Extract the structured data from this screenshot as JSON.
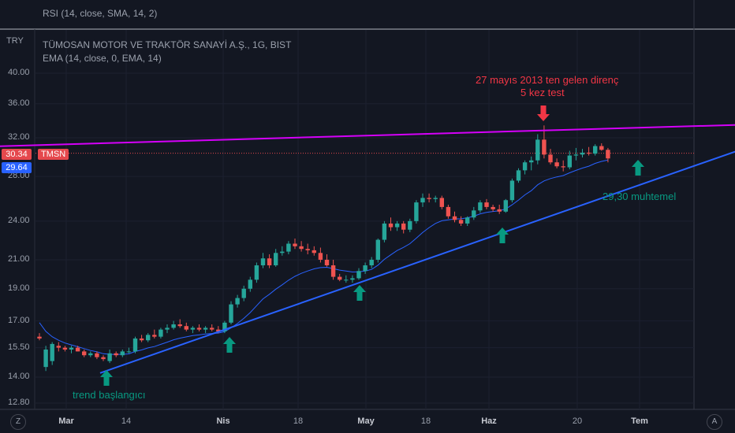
{
  "indicator_rsi": "RSI (14, close, SMA, 14, 2)",
  "currency": "TRY",
  "symbol_title": "TÜMOSAN MOTOR VE TRAKTÖR SANAYİ A.Ş., 1G, BIST",
  "indicator_ema": "EMA (14, close, 0, EMA, 14)",
  "last_price_label": "30.34",
  "ema_value_label": "29.64",
  "ticker_tag": "TMSN",
  "scale_left_button": "Z",
  "scale_right_button": "A",
  "colors": {
    "up": "#26a69a",
    "down": "#ef5350",
    "ema": "#2962ff",
    "resistance": "#d500f9",
    "support": "#2962ff",
    "annot_red": "#f23645",
    "annot_green": "#089981"
  },
  "chart_data": {
    "type": "candlestick",
    "ylim": [
      12.8,
      40
    ],
    "yscale": "log",
    "yticks": [
      "40.00",
      "36.00",
      "32.00",
      "28.00",
      "24.00",
      "21.00",
      "19.00",
      "17.00",
      "15.50",
      "14.00",
      "12.80"
    ],
    "xticks": [
      {
        "label": "Mar",
        "bold": true
      },
      {
        "label": "14",
        "bold": false
      },
      {
        "label": "Nis",
        "bold": true
      },
      {
        "label": "18",
        "bold": false
      },
      {
        "label": "May",
        "bold": true
      },
      {
        "label": "18",
        "bold": false
      },
      {
        "label": "Haz",
        "bold": true
      },
      {
        "label": "20",
        "bold": false
      },
      {
        "label": "Tem",
        "bold": true
      }
    ],
    "candles": [
      [
        16.1,
        16.3,
        15.9,
        16.0
      ],
      [
        14.5,
        15.6,
        14.3,
        15.4
      ],
      [
        14.8,
        15.8,
        14.6,
        15.7
      ],
      [
        15.6,
        15.8,
        15.3,
        15.5
      ],
      [
        15.5,
        15.6,
        15.3,
        15.4
      ],
      [
        15.4,
        15.6,
        15.2,
        15.5
      ],
      [
        15.5,
        15.6,
        15.3,
        15.3
      ],
      [
        15.3,
        15.4,
        15.0,
        15.1
      ],
      [
        15.1,
        15.3,
        15.0,
        15.2
      ],
      [
        15.2,
        15.3,
        14.9,
        15.0
      ],
      [
        15.0,
        15.1,
        14.8,
        14.9
      ],
      [
        14.8,
        15.4,
        14.7,
        15.2
      ],
      [
        15.2,
        15.3,
        15.0,
        15.1
      ],
      [
        15.1,
        15.4,
        15.0,
        15.3
      ],
      [
        15.3,
        15.5,
        15.2,
        15.3
      ],
      [
        15.3,
        16.1,
        15.2,
        16.0
      ],
      [
        16.0,
        16.2,
        15.8,
        15.9
      ],
      [
        15.9,
        16.3,
        15.8,
        16.2
      ],
      [
        16.2,
        16.5,
        16.0,
        16.1
      ],
      [
        16.1,
        16.6,
        16.0,
        16.5
      ],
      [
        16.5,
        16.8,
        16.3,
        16.6
      ],
      [
        16.6,
        17.0,
        16.5,
        16.8
      ],
      [
        16.8,
        17.1,
        16.6,
        16.7
      ],
      [
        16.7,
        16.9,
        16.4,
        16.5
      ],
      [
        16.5,
        16.7,
        16.3,
        16.6
      ],
      [
        16.6,
        16.8,
        16.4,
        16.5
      ],
      [
        16.5,
        16.7,
        16.3,
        16.6
      ],
      [
        16.6,
        16.8,
        16.4,
        16.5
      ],
      [
        16.5,
        16.7,
        16.3,
        16.4
      ],
      [
        16.4,
        17.0,
        16.3,
        16.9
      ],
      [
        16.9,
        18.2,
        16.8,
        18.0
      ],
      [
        18.0,
        18.6,
        17.8,
        18.4
      ],
      [
        18.4,
        19.2,
        18.2,
        19.0
      ],
      [
        19.0,
        19.8,
        18.8,
        19.6
      ],
      [
        19.6,
        20.8,
        19.4,
        20.6
      ],
      [
        20.6,
        21.5,
        20.4,
        21.1
      ],
      [
        21.1,
        21.4,
        20.4,
        20.6
      ],
      [
        20.6,
        21.8,
        20.5,
        21.5
      ],
      [
        21.5,
        22.0,
        21.3,
        21.6
      ],
      [
        21.6,
        22.4,
        21.4,
        22.2
      ],
      [
        22.2,
        22.6,
        21.8,
        22.0
      ],
      [
        22.0,
        22.4,
        21.6,
        21.8
      ],
      [
        21.8,
        22.2,
        21.4,
        21.7
      ],
      [
        21.7,
        22.0,
        21.3,
        21.5
      ],
      [
        21.5,
        21.9,
        20.8,
        21.0
      ],
      [
        21.0,
        21.4,
        20.5,
        20.6
      ],
      [
        20.6,
        21.0,
        19.6,
        19.8
      ],
      [
        19.8,
        20.0,
        19.5,
        19.6
      ],
      [
        19.6,
        19.9,
        19.4,
        19.6
      ],
      [
        19.6,
        19.9,
        19.4,
        19.7
      ],
      [
        19.7,
        20.4,
        19.6,
        20.2
      ],
      [
        20.2,
        20.8,
        20.0,
        20.6
      ],
      [
        20.6,
        21.2,
        20.4,
        21.0
      ],
      [
        21.0,
        22.6,
        20.8,
        22.5
      ],
      [
        22.5,
        24.0,
        22.3,
        23.8
      ],
      [
        23.8,
        24.3,
        23.2,
        23.5
      ],
      [
        23.5,
        24.0,
        23.2,
        23.8
      ],
      [
        23.8,
        24.0,
        23.0,
        23.3
      ],
      [
        23.3,
        24.2,
        23.1,
        24.0
      ],
      [
        24.0,
        25.8,
        23.8,
        25.6
      ],
      [
        25.6,
        26.4,
        25.2,
        26.0
      ],
      [
        26.0,
        26.4,
        25.6,
        25.9
      ],
      [
        25.9,
        26.2,
        25.6,
        26.0
      ],
      [
        26.0,
        26.2,
        25.0,
        25.2
      ],
      [
        25.2,
        25.4,
        24.2,
        24.4
      ],
      [
        24.4,
        24.8,
        23.9,
        24.1
      ],
      [
        24.1,
        24.4,
        23.6,
        23.8
      ],
      [
        23.8,
        24.4,
        23.6,
        24.3
      ],
      [
        24.3,
        25.2,
        24.1,
        24.9
      ],
      [
        24.9,
        25.8,
        24.7,
        25.6
      ],
      [
        25.6,
        25.9,
        25.0,
        25.2
      ],
      [
        25.2,
        25.4,
        24.8,
        25.0
      ],
      [
        25.0,
        25.4,
        24.6,
        24.8
      ],
      [
        24.8,
        25.9,
        24.7,
        25.8
      ],
      [
        25.8,
        27.8,
        25.6,
        27.6
      ],
      [
        27.6,
        28.8,
        27.4,
        28.6
      ],
      [
        28.6,
        29.6,
        28.2,
        29.4
      ],
      [
        29.4,
        30.0,
        28.6,
        29.6
      ],
      [
        29.6,
        32.4,
        29.2,
        31.8
      ],
      [
        31.8,
        33.4,
        29.8,
        30.2
      ],
      [
        30.2,
        30.8,
        29.2,
        29.4
      ],
      [
        29.4,
        29.8,
        28.8,
        29.0
      ],
      [
        29.0,
        29.6,
        28.5,
        28.9
      ],
      [
        28.9,
        30.6,
        28.7,
        30.1
      ],
      [
        30.1,
        30.9,
        29.6,
        30.2
      ],
      [
        30.2,
        30.8,
        29.9,
        30.4
      ],
      [
        30.4,
        31.0,
        30.1,
        30.3
      ],
      [
        30.3,
        31.3,
        30.1,
        31.1
      ],
      [
        31.1,
        31.4,
        30.6,
        30.7
      ],
      [
        30.7,
        30.9,
        29.4,
        29.8
      ]
    ],
    "ema": [
      16.9,
      16.4,
      16.1,
      15.9,
      15.75,
      15.65,
      15.55,
      15.45,
      15.35,
      15.28,
      15.18,
      15.15,
      15.14,
      15.15,
      15.17,
      15.3,
      15.38,
      15.49,
      15.56,
      15.68,
      15.8,
      15.93,
      16.02,
      16.09,
      16.16,
      16.2,
      16.25,
      16.28,
      16.3,
      16.38,
      16.6,
      16.85,
      17.15,
      17.5,
      17.92,
      18.35,
      18.64,
      18.97,
      19.26,
      19.57,
      19.83,
      20.04,
      20.2,
      20.35,
      20.44,
      20.46,
      20.36,
      20.26,
      20.2,
      20.13,
      20.14,
      20.2,
      20.31,
      20.61,
      21.03,
      21.36,
      21.68,
      21.92,
      22.2,
      22.63,
      23.08,
      23.47,
      23.81,
      24.03,
      24.1,
      24.18,
      24.19,
      24.28,
      24.41,
      24.61,
      24.73,
      24.81,
      24.87,
      25.03,
      25.39,
      25.81,
      26.28,
      26.66,
      27.21,
      27.57,
      27.8,
      27.96,
      28.09,
      28.36,
      28.6,
      28.82,
      29.01,
      29.3,
      29.5,
      29.64
    ],
    "trendlines": [
      {
        "name": "support",
        "from": {
          "bar": 9.5,
          "price": 14.2
        },
        "to": {
          "bar": 111,
          "price": 31.0
        }
      },
      {
        "name": "resistance",
        "from": {
          "bar": -8,
          "price": 31.05
        },
        "to": {
          "bar": 111,
          "price": 33.5
        }
      }
    ],
    "last_price": 30.34
  },
  "annotations": {
    "resistance_line1": "27 mayıs 2013 ten gelen direnç",
    "resistance_line2": "5 kez test",
    "target": "29,30 muhtemel",
    "trend_start": "trend başlangıcı"
  }
}
